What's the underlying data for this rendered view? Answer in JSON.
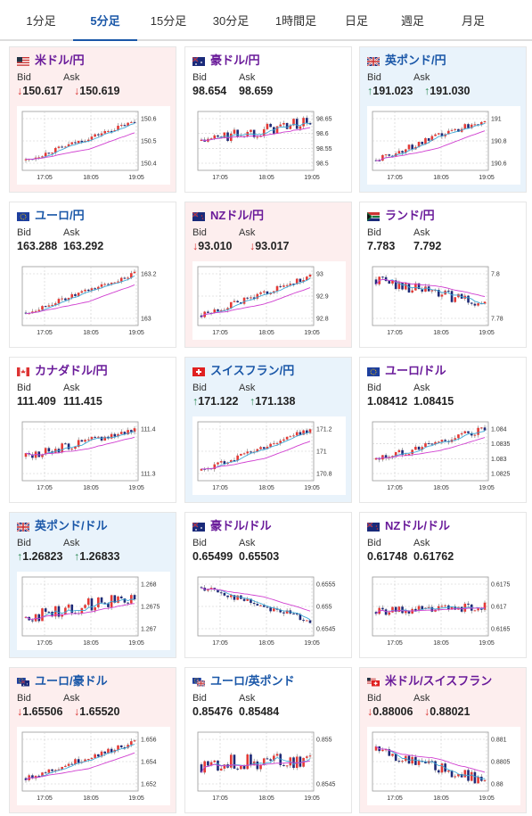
{
  "tabs": [
    {
      "label": "1分足",
      "active": false
    },
    {
      "label": "5分足",
      "active": true
    },
    {
      "label": "15分足",
      "active": false
    },
    {
      "label": "30分足",
      "active": false
    },
    {
      "label": "1時間足",
      "active": false
    },
    {
      "label": "日足",
      "active": false
    },
    {
      "label": "週足",
      "active": false
    },
    {
      "label": "月足",
      "active": false
    }
  ],
  "labels": {
    "bid": "Bid",
    "ask": "Ask"
  },
  "xticks": [
    "17:05",
    "18:05",
    "19:05"
  ],
  "colors": {
    "down_arrow": "#d9302f",
    "up_arrow": "#2e8b57",
    "bull": "#e53935",
    "bear": "#1e2a78",
    "ma_short": "#3fa9d6",
    "ma_long": "#d03fd0",
    "active_tab": "#1a57a8"
  },
  "pairs": [
    {
      "name": "米ドル/円",
      "flag": "US",
      "bid": "150.617",
      "ask": "150.619",
      "dir": "down",
      "yticks": [
        "150.6",
        "150.5",
        "150.4"
      ],
      "trend": [
        0.15,
        0.85
      ],
      "noise": 0.08
    },
    {
      "name": "豪ドル/円",
      "flag": "AU",
      "bid": "98.654",
      "ask": "98.659",
      "dir": "none",
      "yticks": [
        "98.65",
        "98.6",
        "98.55",
        "98.5"
      ],
      "trend": [
        0.5,
        0.85
      ],
      "noise": 0.22
    },
    {
      "name": "英ポンド/円",
      "flag": "GB",
      "bid": "191.023",
      "ask": "191.030",
      "dir": "up",
      "yticks": [
        "191",
        "190.8",
        "190.6"
      ],
      "trend": [
        0.15,
        0.9
      ],
      "noise": 0.12
    },
    {
      "name": "ユーロ/円",
      "flag": "EU",
      "bid": "163.288",
      "ask": "163.292",
      "dir": "none",
      "yticks": [
        "163.2",
        "163"
      ],
      "trend": [
        0.2,
        0.9
      ],
      "noise": 0.08
    },
    {
      "name": "NZドル/円",
      "flag": "NZ",
      "bid": "93.010",
      "ask": "93.017",
      "dir": "down",
      "yticks": [
        "93",
        "92.9",
        "92.8"
      ],
      "trend": [
        0.15,
        0.85
      ],
      "noise": 0.1
    },
    {
      "name": "ランド/円",
      "flag": "ZA",
      "bid": "7.783",
      "ask": "7.792",
      "dir": "none",
      "yticks": [
        "7.8",
        "7.78"
      ],
      "trend": [
        0.8,
        0.35
      ],
      "noise": 0.2
    },
    {
      "name": "カナダドル/円",
      "flag": "CA",
      "bid": "111.409",
      "ask": "111.415",
      "dir": "none",
      "yticks": [
        "111.4",
        "111.3"
      ],
      "trend": [
        0.4,
        0.9
      ],
      "noise": 0.15
    },
    {
      "name": "スイスフラン/円",
      "flag": "CH",
      "bid": "171.122",
      "ask": "171.138",
      "dir": "up",
      "yticks": [
        "171.2",
        "171",
        "170.8"
      ],
      "trend": [
        0.15,
        0.9
      ],
      "noise": 0.1
    },
    {
      "name": "ユーロ/ドル",
      "flag": "EU",
      "bid": "1.08412",
      "ask": "1.08415",
      "dir": "none",
      "yticks": [
        "1.084",
        "1.0835",
        "1.083",
        "1.0825"
      ],
      "trend": [
        0.35,
        0.9
      ],
      "noise": 0.15
    },
    {
      "name": "英ポンド/ドル",
      "flag": "GB",
      "bid": "1.26823",
      "ask": "1.26833",
      "dir": "up",
      "yticks": [
        "1.268",
        "1.2675",
        "1.267"
      ],
      "trend": [
        0.3,
        0.7
      ],
      "noise": 0.25
    },
    {
      "name": "豪ドル/ドル",
      "flag": "AU",
      "bid": "0.65499",
      "ask": "0.65503",
      "dir": "none",
      "yticks": [
        "0.6555",
        "0.655",
        "0.6545"
      ],
      "trend": [
        0.85,
        0.25
      ],
      "noise": 0.12
    },
    {
      "name": "NZドル/ドル",
      "flag": "NZ",
      "bid": "0.61748",
      "ask": "0.61762",
      "dir": "none",
      "yticks": [
        "0.6175",
        "0.617",
        "0.6165"
      ],
      "trend": [
        0.4,
        0.5
      ],
      "noise": 0.15
    },
    {
      "name": "ユーロ/豪ドル",
      "flag": "EUAU",
      "bid": "1.65506",
      "ask": "1.65520",
      "dir": "down",
      "yticks": [
        "1.656",
        "1.654",
        "1.652"
      ],
      "trend": [
        0.2,
        0.85
      ],
      "noise": 0.1
    },
    {
      "name": "ユーロ/英ポンド",
      "flag": "EUGB",
      "bid": "0.85476",
      "ask": "0.85484",
      "dir": "none",
      "yticks": [
        "0.855",
        "0.8545"
      ],
      "trend": [
        0.45,
        0.55
      ],
      "noise": 0.3
    },
    {
      "name": "米ドル/スイスフラン",
      "flag": "USCH",
      "bid": "0.88006",
      "ask": "0.88021",
      "dir": "down",
      "yticks": [
        "0.881",
        "0.8805",
        "0.88"
      ],
      "trend": [
        0.7,
        0.15
      ],
      "noise": 0.2
    }
  ]
}
